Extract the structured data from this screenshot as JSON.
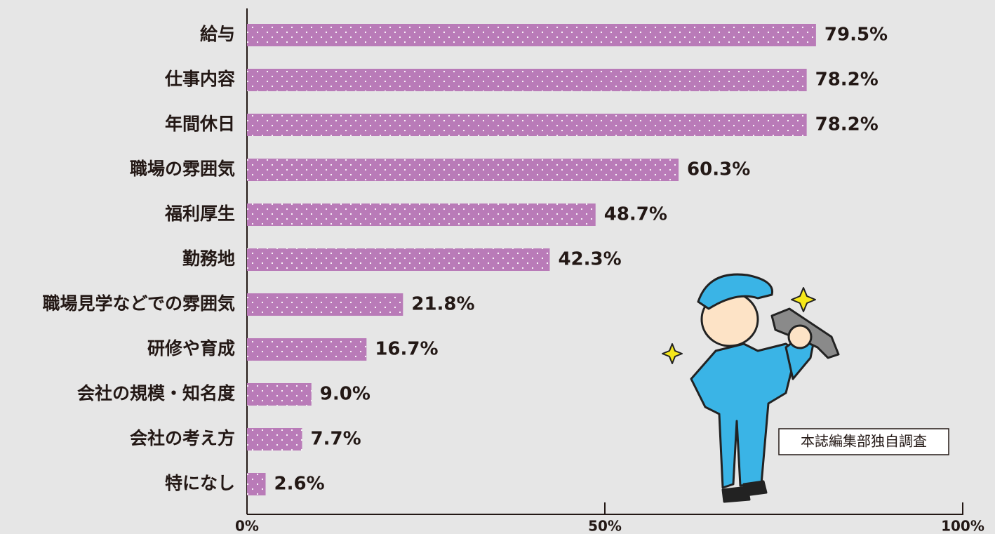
{
  "chart_data": {
    "type": "bar",
    "orientation": "horizontal",
    "categories": [
      "給与",
      "仕事内容",
      "年間休日",
      "職場の雰囲気",
      "福利厚生",
      "勤務地",
      "職場見学などでの雰囲気",
      "研修や育成",
      "会社の規模・知名度",
      "会社の考え方",
      "特になし"
    ],
    "values": [
      79.5,
      78.2,
      78.2,
      60.3,
      48.7,
      42.3,
      21.8,
      16.7,
      9.0,
      7.7,
      2.6
    ],
    "value_labels": [
      "79.5%",
      "78.2%",
      "78.2%",
      "60.3%",
      "48.7%",
      "42.3%",
      "21.8%",
      "16.7%",
      "9.0%",
      "7.7%",
      "2.6%"
    ],
    "color": "#b97bb8",
    "xlim": [
      0,
      100
    ],
    "xticks": [
      {
        "value": 0,
        "label": "0%"
      },
      {
        "value": 50,
        "label": "50%"
      },
      {
        "value": 100,
        "label": "100%"
      }
    ],
    "note": "本誌編集部独自調査"
  }
}
